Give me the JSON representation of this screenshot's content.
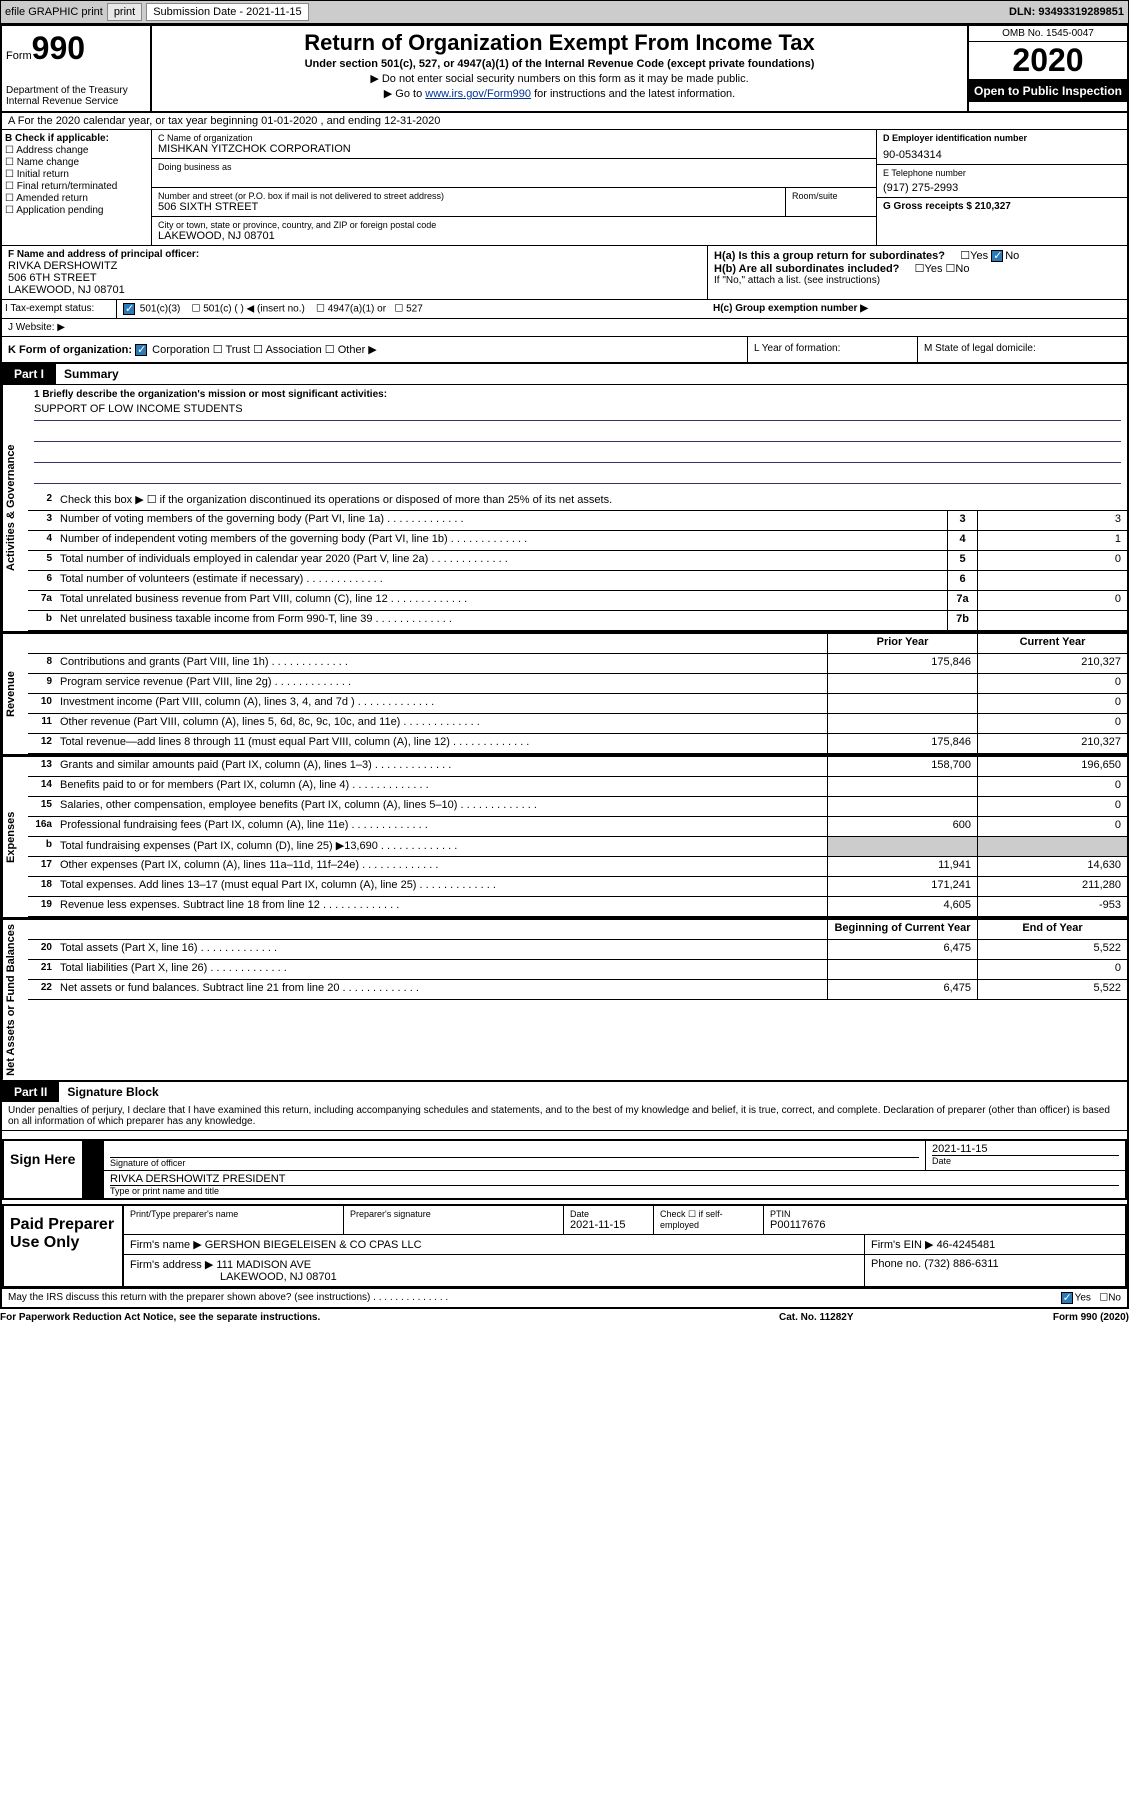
{
  "header": {
    "efile": "efile GRAPHIC print",
    "sub_date_label": "Submission Date - 2021-11-15",
    "dln": "DLN: 93493319289851"
  },
  "top": {
    "form_label": "Form",
    "form_no": "990",
    "title": "Return of Organization Exempt From Income Tax",
    "subtitle": "Under section 501(c), 527, or 4947(a)(1) of the Internal Revenue Code (except private foundations)",
    "line1": "▶ Do not enter social security numbers on this form as it may be made public.",
    "line2_pre": "▶ Go to ",
    "line2_link": "www.irs.gov/Form990",
    "line2_post": " for instructions and the latest information.",
    "dept": "Department of the Treasury\nInternal Revenue Service",
    "omb": "OMB No. 1545-0047",
    "year": "2020",
    "open": "Open to Public Inspection"
  },
  "a_line": "A For the 2020 calendar year, or tax year beginning 01-01-2020    , and ending 12-31-2020",
  "b": {
    "label": "B Check if applicable:",
    "opts": [
      "Address change",
      "Name change",
      "Initial return",
      "Final return/terminated",
      "Amended return",
      "Application pending"
    ]
  },
  "c": {
    "name_lbl": "C Name of organization",
    "name": "MISHKAN YITZCHOK CORPORATION",
    "dba_lbl": "Doing business as",
    "addr_lbl": "Number and street (or P.O. box if mail is not delivered to street address)",
    "addr": "506 SIXTH STREET",
    "room_lbl": "Room/suite",
    "city_lbl": "City or town, state or province, country, and ZIP or foreign postal code",
    "city": "LAKEWOOD, NJ  08701"
  },
  "d": {
    "ein_lbl": "D Employer identification number",
    "ein": "90-0534314",
    "tel_lbl": "E Telephone number",
    "tel": "(917) 275-2993",
    "gross_lbl": "G Gross receipts $ 210,327"
  },
  "f": {
    "lbl": "F Name and address of principal officer:",
    "name": "RIVKA DERSHOWITZ",
    "addr1": "506 6TH STREET",
    "addr2": "LAKEWOOD, NJ  08701"
  },
  "h": {
    "a": "H(a)  Is this a group return for subordinates?",
    "a_no": "No",
    "b": "H(b)  Are all subordinates included?",
    "b_note": "If \"No,\" attach a list. (see instructions)",
    "c": "H(c)  Group exemption number ▶"
  },
  "i": {
    "lbl": "I  Tax-exempt status:",
    "opts": [
      "501(c)(3)",
      "501(c) (   ) ◀ (insert no.)",
      "4947(a)(1) or",
      "527"
    ]
  },
  "j": "J  Website: ▶",
  "k": "K Form of organization:",
  "k_opts": [
    "Corporation",
    "Trust",
    "Association",
    "Other ▶"
  ],
  "l": "L Year of formation:",
  "m": "M State of legal domicile:",
  "part1": {
    "tab": "Part I",
    "title": "Summary",
    "mission_lbl": "1  Briefly describe the organization's mission or most significant activities:",
    "mission": "SUPPORT OF LOW INCOME STUDENTS",
    "line2": "Check this box ▶ ☐  if the organization discontinued its operations or disposed of more than 25% of its net assets.",
    "sections": {
      "gov": "Activities & Governance",
      "rev": "Revenue",
      "exp": "Expenses",
      "net": "Net Assets or Fund Balances"
    },
    "lines": [
      {
        "n": "3",
        "d": "Number of voting members of the governing body (Part VI, line 1a)",
        "b": "3",
        "v": "3"
      },
      {
        "n": "4",
        "d": "Number of independent voting members of the governing body (Part VI, line 1b)",
        "b": "4",
        "v": "1"
      },
      {
        "n": "5",
        "d": "Total number of individuals employed in calendar year 2020 (Part V, line 2a)",
        "b": "5",
        "v": "0"
      },
      {
        "n": "6",
        "d": "Total number of volunteers (estimate if necessary)",
        "b": "6",
        "v": ""
      },
      {
        "n": "7a",
        "d": "Total unrelated business revenue from Part VIII, column (C), line 12",
        "b": "7a",
        "v": "0"
      },
      {
        "n": "b",
        "d": "Net unrelated business taxable income from Form 990-T, line 39",
        "b": "7b",
        "v": ""
      }
    ],
    "hdr_prior": "Prior Year",
    "hdr_current": "Current Year",
    "rev_lines": [
      {
        "n": "8",
        "d": "Contributions and grants (Part VIII, line 1h)",
        "p": "175,846",
        "c": "210,327"
      },
      {
        "n": "9",
        "d": "Program service revenue (Part VIII, line 2g)",
        "p": "",
        "c": "0"
      },
      {
        "n": "10",
        "d": "Investment income (Part VIII, column (A), lines 3, 4, and 7d )",
        "p": "",
        "c": "0"
      },
      {
        "n": "11",
        "d": "Other revenue (Part VIII, column (A), lines 5, 6d, 8c, 9c, 10c, and 11e)",
        "p": "",
        "c": "0"
      },
      {
        "n": "12",
        "d": "Total revenue—add lines 8 through 11 (must equal Part VIII, column (A), line 12)",
        "p": "175,846",
        "c": "210,327"
      }
    ],
    "exp_lines": [
      {
        "n": "13",
        "d": "Grants and similar amounts paid (Part IX, column (A), lines 1–3)",
        "p": "158,700",
        "c": "196,650"
      },
      {
        "n": "14",
        "d": "Benefits paid to or for members (Part IX, column (A), line 4)",
        "p": "",
        "c": "0"
      },
      {
        "n": "15",
        "d": "Salaries, other compensation, employee benefits (Part IX, column (A), lines 5–10)",
        "p": "",
        "c": "0"
      },
      {
        "n": "16a",
        "d": "Professional fundraising fees (Part IX, column (A), line 11e)",
        "p": "600",
        "c": "0"
      },
      {
        "n": "b",
        "d": "Total fundraising expenses (Part IX, column (D), line 25) ▶13,690",
        "p": "—",
        "c": "—"
      },
      {
        "n": "17",
        "d": "Other expenses (Part IX, column (A), lines 11a–11d, 11f–24e)",
        "p": "11,941",
        "c": "14,630"
      },
      {
        "n": "18",
        "d": "Total expenses. Add lines 13–17 (must equal Part IX, column (A), line 25)",
        "p": "171,241",
        "c": "211,280"
      },
      {
        "n": "19",
        "d": "Revenue less expenses. Subtract line 18 from line 12",
        "p": "4,605",
        "c": "-953"
      }
    ],
    "hdr_begin": "Beginning of Current Year",
    "hdr_end": "End of Year",
    "net_lines": [
      {
        "n": "20",
        "d": "Total assets (Part X, line 16)",
        "p": "6,475",
        "c": "5,522"
      },
      {
        "n": "21",
        "d": "Total liabilities (Part X, line 26)",
        "p": "",
        "c": "0"
      },
      {
        "n": "22",
        "d": "Net assets or fund balances. Subtract line 21 from line 20",
        "p": "6,475",
        "c": "5,522"
      }
    ]
  },
  "part2": {
    "tab": "Part II",
    "title": "Signature Block",
    "declaration": "Under penalties of perjury, I declare that I have examined this return, including accompanying schedules and statements, and to the best of my knowledge and belief, it is true, correct, and complete. Declaration of preparer (other than officer) is based on all information of which preparer has any knowledge."
  },
  "sign": {
    "label": "Sign Here",
    "sig_lbl": "Signature of officer",
    "date": "2021-11-15",
    "date_lbl": "Date",
    "name": "RIVKA DERSHOWITZ  PRESIDENT",
    "name_lbl": "Type or print name and title"
  },
  "prep": {
    "label": "Paid Preparer Use Only",
    "h1": "Print/Type preparer's name",
    "h2": "Preparer's signature",
    "h3": "Date",
    "h3v": "2021-11-15",
    "h4": "Check ☐ if self-employed",
    "h5": "PTIN",
    "h5v": "P00117676",
    "firm_lbl": "Firm's name    ▶",
    "firm": "GERSHON BIEGELEISEN & CO CPAS LLC",
    "ein_lbl": "Firm's EIN ▶",
    "ein": "46-4245481",
    "addr_lbl": "Firm's address ▶",
    "addr1": "111 MADISON AVE",
    "addr2": "LAKEWOOD, NJ  08701",
    "phone_lbl": "Phone no.",
    "phone": "(732) 886-6311"
  },
  "footer": {
    "discuss": "May the IRS discuss this return with the preparer shown above? (see instructions)",
    "yes": "Yes",
    "no": "No",
    "paperwork": "For Paperwork Reduction Act Notice, see the separate instructions.",
    "cat": "Cat. No. 11282Y",
    "form": "Form 990 (2020)"
  }
}
